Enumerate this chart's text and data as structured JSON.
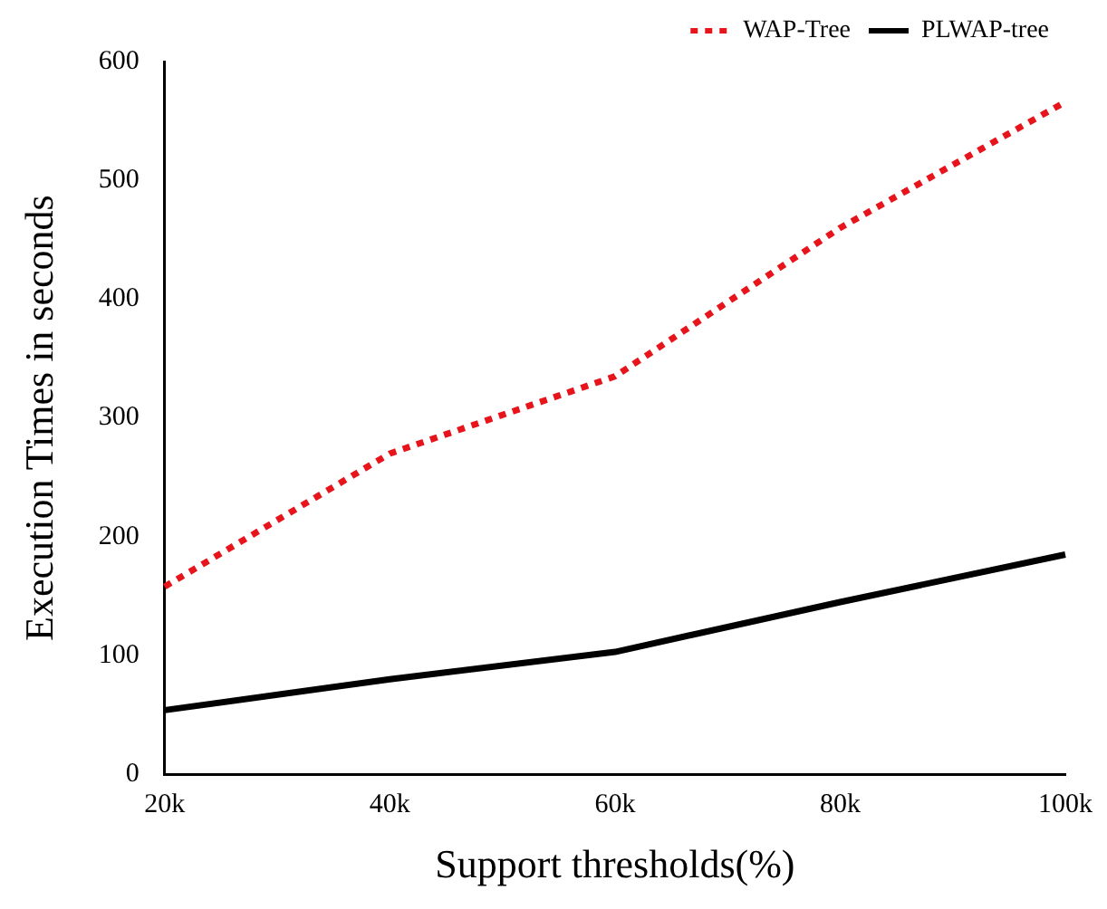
{
  "chart_data": {
    "type": "line",
    "xlabel": "Support thresholds(%)",
    "ylabel": "Execution Times in seconds",
    "categories": [
      "20k",
      "40k",
      "60k",
      "80k",
      "100k"
    ],
    "series": [
      {
        "name": "WAP-Tree",
        "color": "#e8141b",
        "values": [
          158,
          270,
          335,
          460,
          566
        ],
        "line_style": "dotted"
      },
      {
        "name": "PLWAP-tree",
        "color": "#000000",
        "values": [
          54,
          80,
          103,
          145,
          185
        ],
        "line_style": "solid"
      }
    ],
    "ylim": [
      0,
      600
    ],
    "yticks": [
      0,
      100,
      200,
      300,
      400,
      500,
      600
    ],
    "grid": false,
    "legend": "top right",
    "marker": "none"
  }
}
